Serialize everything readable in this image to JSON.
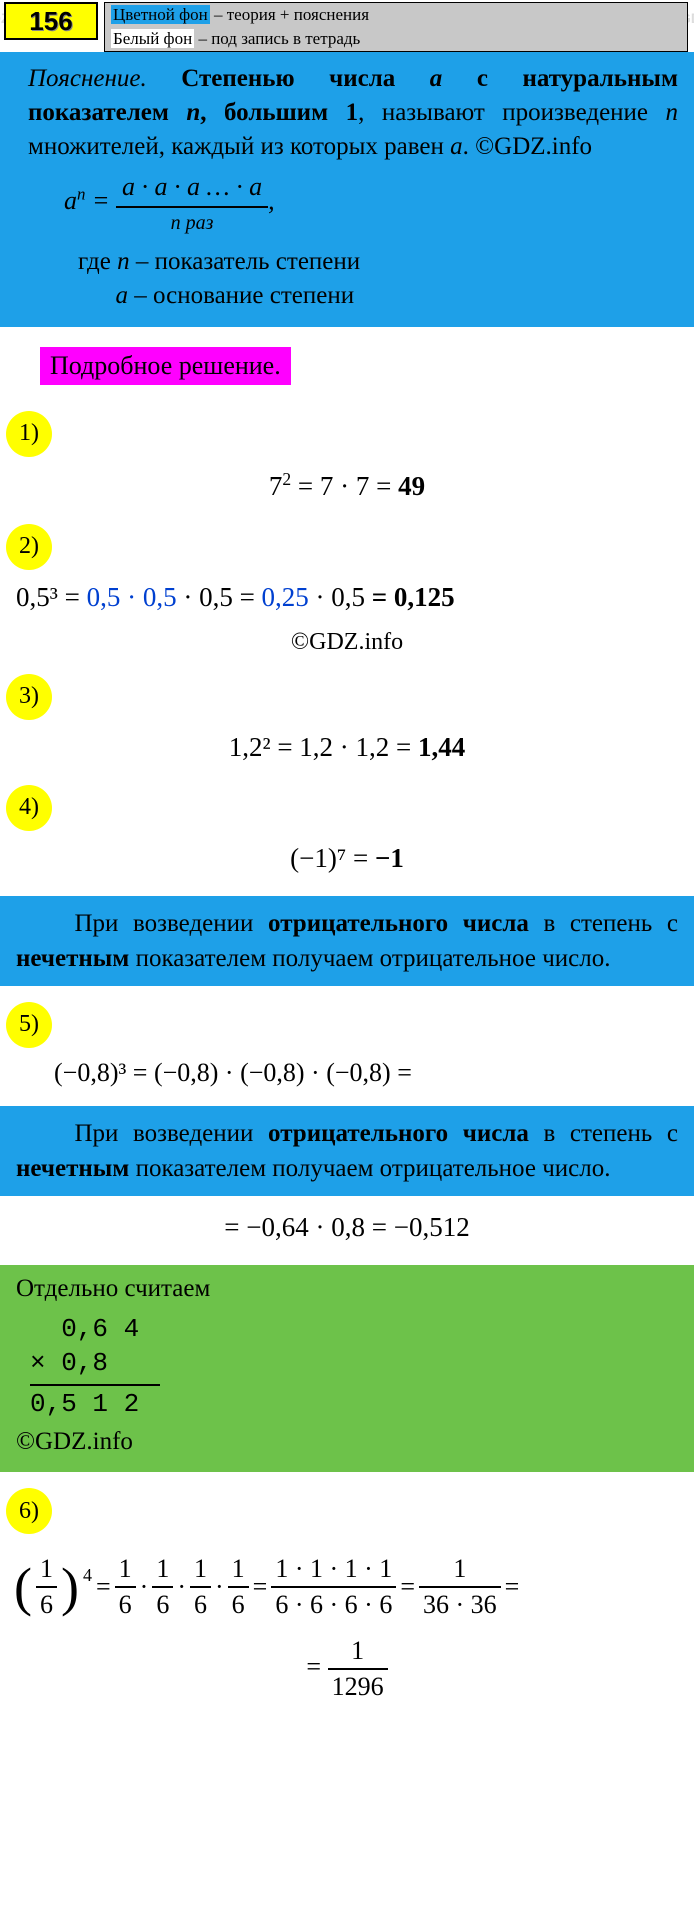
{
  "problem_number": "156",
  "legend": {
    "line1_hl": "Цветной фон",
    "line1_rest": " – теория + пояснения",
    "line2_hl": "Белый фон",
    "line2_rest": " – под запись в тетрадь"
  },
  "theory": {
    "explanation_label": "Пояснение.",
    "text_parts": {
      "p1": "Степенью числа ",
      "a": "a",
      "p2": " с натуральным показателем ",
      "n": "n",
      "p3": ", большим 1",
      "p4": ", называют произведение ",
      "p5": " множителей, каждый из которых равен ",
      "p6": ". ©GDZ.info"
    },
    "formula_base": "a",
    "formula_exp": "n",
    "formula_prod": "a · a · a … · a",
    "formula_under": "n раз",
    "where_label": "где ",
    "where1_var": "n",
    "where1_txt": " – показатель степени",
    "where2_var": "a",
    "where2_txt": " – основание степени"
  },
  "solution_title": "Подробное решение.",
  "items": {
    "i1": {
      "badge": "1)",
      "eq": "7² = 7 · 7 = 49",
      "answer": "49"
    },
    "i2": {
      "badge": "2)",
      "prefix": "0,5³ = ",
      "blue1": "0,5 · 0,5",
      "mid1": " · 0,5 = ",
      "blue2": "0,25",
      "mid2": " · 0,5 ",
      "answer": "= 0,125",
      "copyright": "©GDZ.info"
    },
    "i3": {
      "badge": "3)",
      "eq_lhs": "1,2² = 1,2 · 1,2 = ",
      "answer": "1,44"
    },
    "i4": {
      "badge": "4)",
      "eq_lhs": "(−1)⁷ = ",
      "answer": "−1"
    },
    "rule_neg_odd": {
      "p1": "При возведении ",
      "b1": "отрицательного числа",
      "p2": " в степень с ",
      "b2": "нечетным",
      "p3": " показателем получаем отрицательное число."
    },
    "i5": {
      "badge": "5)",
      "line1": "(−0,8)³ = (−0,8) · (−0,8) · (−0,8) =",
      "line2": "= −0,64 · 0,8 = −0,512"
    },
    "calc": {
      "title": "Отдельно считаем",
      "r1": "  0,6 4",
      "r2": "× 0,8",
      "r3": "0,5 1 2",
      "copyright": "©GDZ.info"
    },
    "i6": {
      "badge": "6)",
      "base_n": "1",
      "base_d": "6",
      "exp": "4",
      "step3_n": "1 · 1 · 1 · 1",
      "step3_d_black": "6 · 6 · ",
      "step3_d_red": "6 · 6",
      "step4_n": "1",
      "step4_d_blue": "36",
      "step4_d_red": " · 36",
      "final_n": "1",
      "final_d": "1296"
    }
  },
  "colors": {
    "yellow": "#ffff00",
    "blue_bg": "#1ea0e8",
    "magenta": "#ff00ff",
    "green": "#6dc24a",
    "blue_text": "#0040d0",
    "red_text": "#c00000"
  },
  "watermark_text": "GDZ.INFO"
}
